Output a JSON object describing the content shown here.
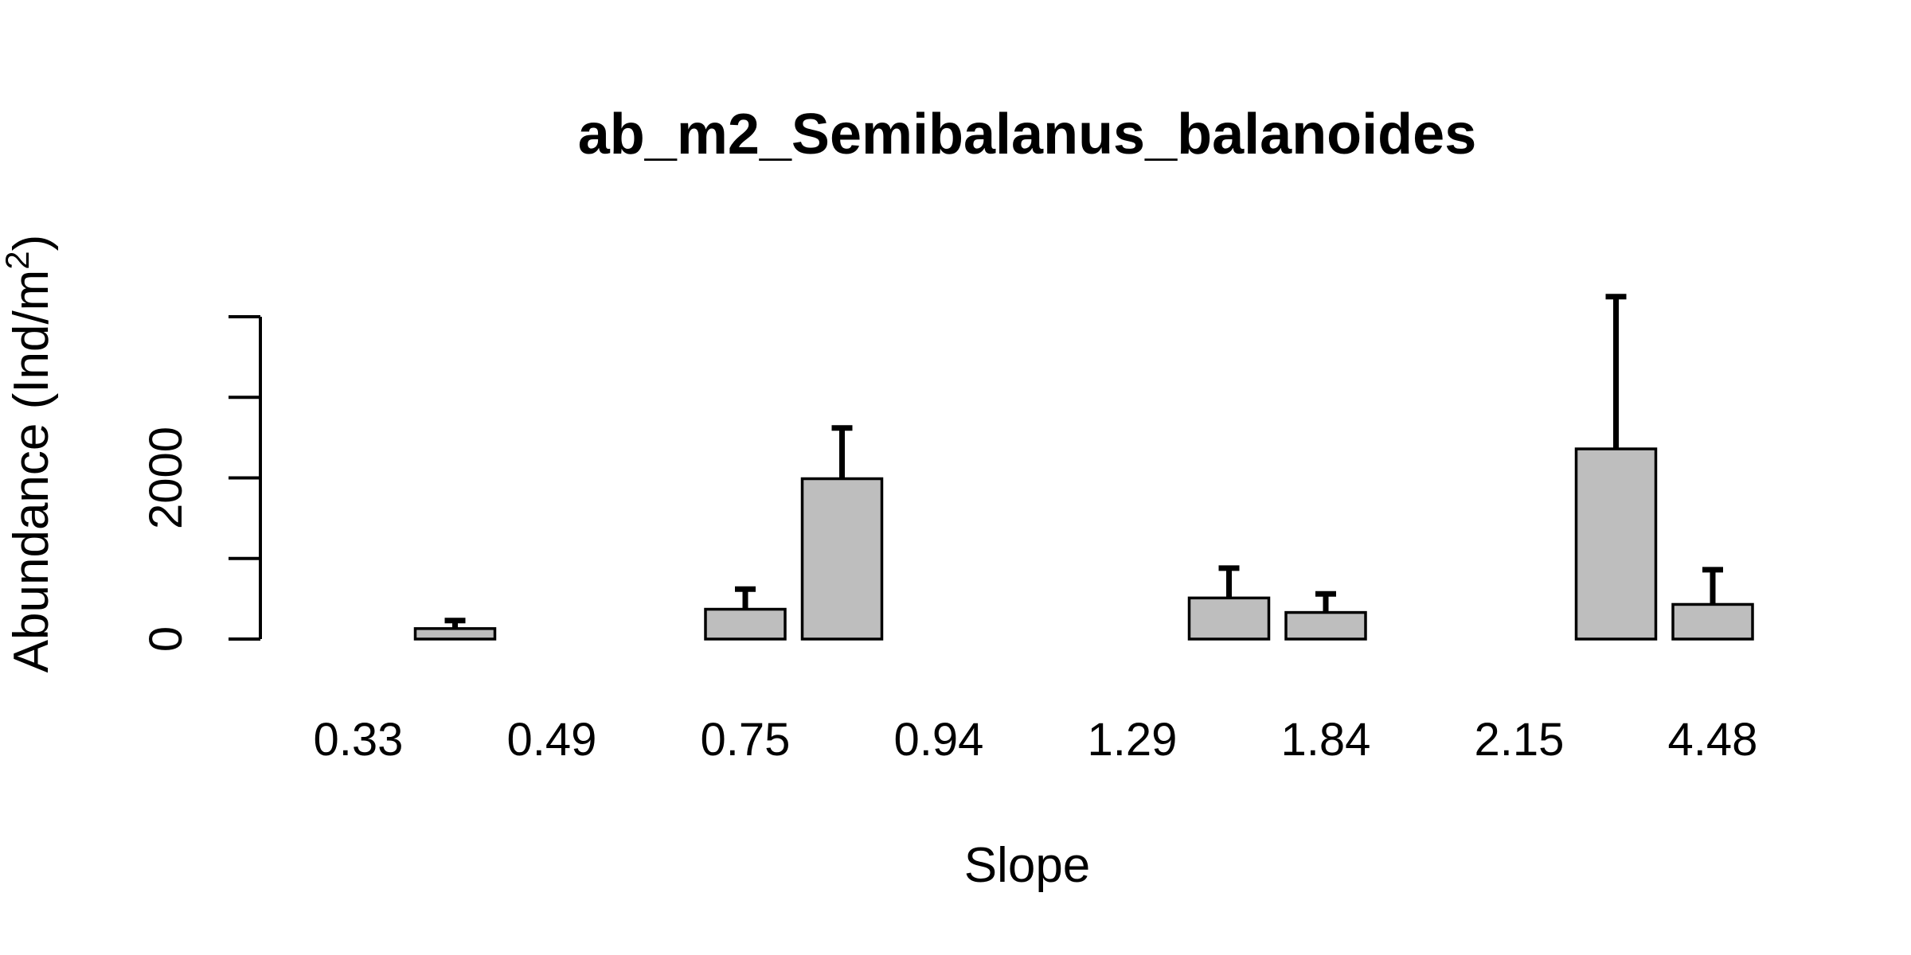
{
  "chart_data": {
    "type": "bar",
    "title": "ab_m2_Semibalanus_balanoides",
    "xlabel": "Slope",
    "ylabel_main": "Abundance (Ind/m",
    "ylabel_sup": "2",
    "ylabel_close": ")",
    "categories": [
      "0.33",
      "",
      "0.49",
      "",
      "0.75",
      "",
      "0.94",
      "",
      "1.29",
      "",
      "1.84",
      "",
      "2.15",
      "",
      "4.48"
    ],
    "values": [
      0,
      130,
      0,
      0,
      370,
      1990,
      0,
      0,
      0,
      510,
      330,
      0,
      0,
      2360,
      430
    ],
    "error_upper": [
      0,
      230,
      0,
      0,
      620,
      2620,
      0,
      0,
      0,
      880,
      560,
      0,
      0,
      4250,
      860
    ],
    "yticks": [
      0,
      1000,
      2000,
      3000,
      4000
    ],
    "ytick_labels": [
      "0",
      "",
      "2000",
      "",
      ""
    ],
    "ylim": [
      0,
      4000
    ]
  }
}
